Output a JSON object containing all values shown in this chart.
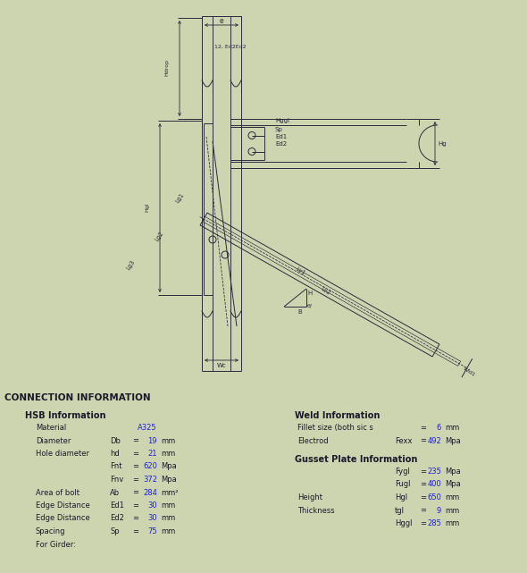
{
  "bg_color": "#cdd4b0",
  "line_color": "#2a2a3a",
  "blue_color": "#2222cc",
  "black_color": "#1a1a2a",
  "title": "CONNECTION INFORMATION",
  "hsb_heading": "HSB Information",
  "hsb_rows": [
    {
      "label": "Material",
      "sym": "",
      "eq": "",
      "val": "A325",
      "unit": "",
      "blue": true
    },
    {
      "label": "Diameter",
      "sym": "Db",
      "eq": "=",
      "val": "19",
      "unit": "mm",
      "blue": true
    },
    {
      "label": "Hole diameter",
      "sym": "hd",
      "eq": "=",
      "val": "21",
      "unit": "mm",
      "blue": true
    },
    {
      "label": "",
      "sym": "Fnt",
      "eq": "=",
      "val": "620",
      "unit": "Mpa",
      "blue": true
    },
    {
      "label": "",
      "sym": "Fnv",
      "eq": "=",
      "val": "372",
      "unit": "Mpa",
      "blue": true
    },
    {
      "label": "Area of bolt",
      "sym": "Ab",
      "eq": "=",
      "val": "284",
      "unit": "mm²",
      "blue": true
    },
    {
      "label": "Edge Distance",
      "sym": "Ed1",
      "eq": "=",
      "val": "30",
      "unit": "mm",
      "blue": true
    },
    {
      "label": "Edge Distance",
      "sym": "Ed2",
      "eq": "=",
      "val": "30",
      "unit": "mm",
      "blue": true
    },
    {
      "label": "Spacing",
      "sym": "Sp",
      "eq": "=",
      "val": "75",
      "unit": "mm",
      "blue": true
    },
    {
      "label": "For Girder:",
      "sym": "",
      "eq": "",
      "val": "",
      "unit": "",
      "blue": false
    }
  ],
  "weld_heading": "Weld Information",
  "weld_rows": [
    {
      "label": "Fillet size (both sic s",
      "sym": "",
      "eq": "=",
      "val": "6",
      "unit": "mm",
      "blue": true
    },
    {
      "label": "Electrod",
      "sym": "Fexx",
      "eq": "=",
      "val": "492",
      "unit": "Mpa",
      "blue": true
    }
  ],
  "gusset_heading": "Gusset Plate Information",
  "gusset_rows": [
    {
      "label": "",
      "sym": "Fygl",
      "eq": "=",
      "val": "235",
      "unit": "Mpa",
      "blue": true
    },
    {
      "label": "",
      "sym": "Fugl",
      "eq": "=",
      "val": "400",
      "unit": "Mpa",
      "blue": true
    },
    {
      "label": "Height",
      "sym": "Hgl",
      "eq": "=",
      "val": "650",
      "unit": "mm",
      "blue": true
    },
    {
      "label": "Thickness",
      "sym": "tgl",
      "eq": "=",
      "val": "9",
      "unit": "mm",
      "blue": true
    },
    {
      "label": "",
      "sym": "Hggl",
      "eq": "=",
      "val": "285",
      "unit": "mm",
      "blue": true
    }
  ]
}
